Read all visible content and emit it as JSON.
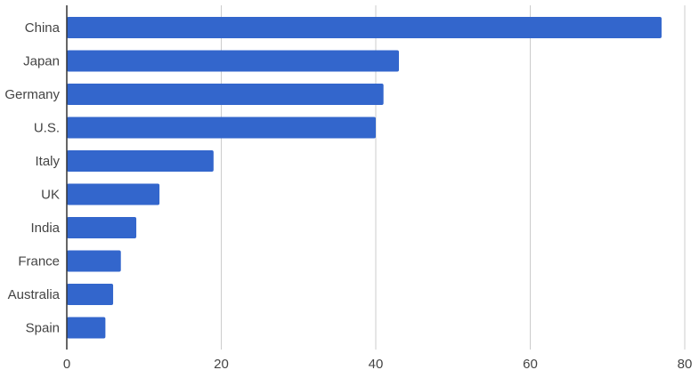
{
  "chart_data": {
    "type": "bar",
    "orientation": "horizontal",
    "categories": [
      "China",
      "Japan",
      "Germany",
      "U.S.",
      "Italy",
      "UK",
      "India",
      "France",
      "Australia",
      "Spain"
    ],
    "values": [
      77,
      43,
      41,
      40,
      19,
      12,
      9,
      7,
      6,
      5
    ],
    "x_ticks": [
      "0",
      "20",
      "40",
      "60",
      "80"
    ],
    "xlim": [
      0,
      80
    ],
    "grid": true,
    "legend": "none",
    "bar_color": "#3366cc",
    "grid_color": "#cccccc",
    "axis_color": "#333333"
  }
}
